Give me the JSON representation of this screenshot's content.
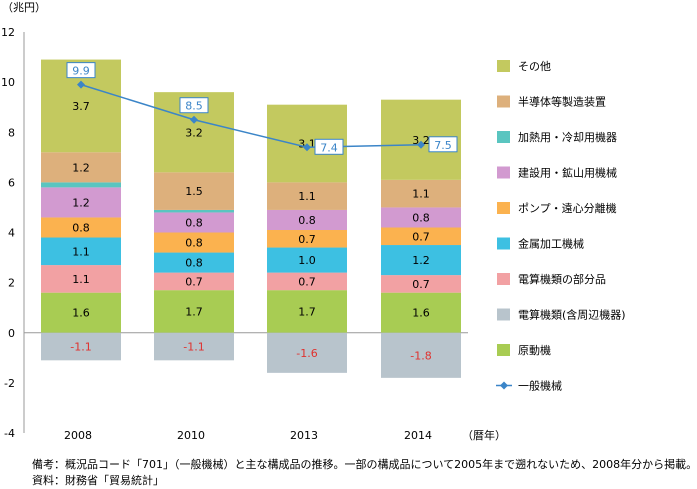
{
  "chart_data": {
    "type": "bar",
    "stacked": true,
    "y_unit": "（兆円）",
    "x_unit": "（暦年）",
    "ylim": [
      -4,
      12
    ],
    "yticks": [
      12,
      10,
      8,
      6,
      4,
      2,
      0,
      -2,
      -4
    ],
    "categories": [
      "2008",
      "2010",
      "2013",
      "2014"
    ],
    "series": [
      {
        "name": "原動機",
        "color": "#a8cc53",
        "values": [
          1.6,
          1.7,
          1.7,
          1.6
        ]
      },
      {
        "name": "電算機類(含周辺機器)",
        "color": "#b8c4cc",
        "values": [
          -1.1,
          -1.1,
          -1.6,
          -1.8
        ],
        "label_color": "#e0312e"
      },
      {
        "name": "電算機類の部分品",
        "color": "#f2a1a3",
        "values": [
          1.1,
          0.7,
          0.7,
          0.7
        ]
      },
      {
        "name": "金属加工機械",
        "color": "#3dc0e2",
        "values": [
          1.1,
          0.8,
          1.0,
          1.2
        ]
      },
      {
        "name": "ポンプ・遠心分離機",
        "color": "#fbb24f",
        "values": [
          0.8,
          0.8,
          0.7,
          0.7
        ]
      },
      {
        "name": "建設用・鉱山用機械",
        "color": "#d29ad0",
        "values": [
          1.2,
          0.8,
          0.8,
          0.8
        ]
      },
      {
        "name": "加熱用・冷却用機器",
        "color": "#5ac5c0",
        "values": [
          0.2,
          0.1,
          0.0,
          0.0
        ]
      },
      {
        "name": "半導体等製造装置",
        "color": "#ddb07c",
        "values": [
          1.2,
          1.5,
          1.1,
          1.1
        ]
      },
      {
        "name": "その他",
        "color": "#c3c95f",
        "values": [
          3.7,
          3.2,
          3.1,
          3.2
        ]
      }
    ],
    "hidden_labels": {
      "加熱用・冷却用機器": true
    },
    "line_series": {
      "name": "一般機械",
      "color": "#3b85c8",
      "values": [
        9.9,
        8.5,
        7.4,
        7.5
      ]
    },
    "legend_order": [
      "その他",
      "半導体等製造装置",
      "加熱用・冷却用機器",
      "建設用・鉱山用機械",
      "ポンプ・遠心分離機",
      "金属加工機械",
      "電算機類の部分品",
      "電算機類(含周辺機器)",
      "原動機",
      "一般機械"
    ]
  },
  "notes": {
    "line1": "備考：概況品コード「701」（一般機械）と主な構成品の推移。一部の構成品について2005年まで遡れないため、2008年分から掲載。",
    "line2": "資料：財務省「貿易統計」"
  }
}
